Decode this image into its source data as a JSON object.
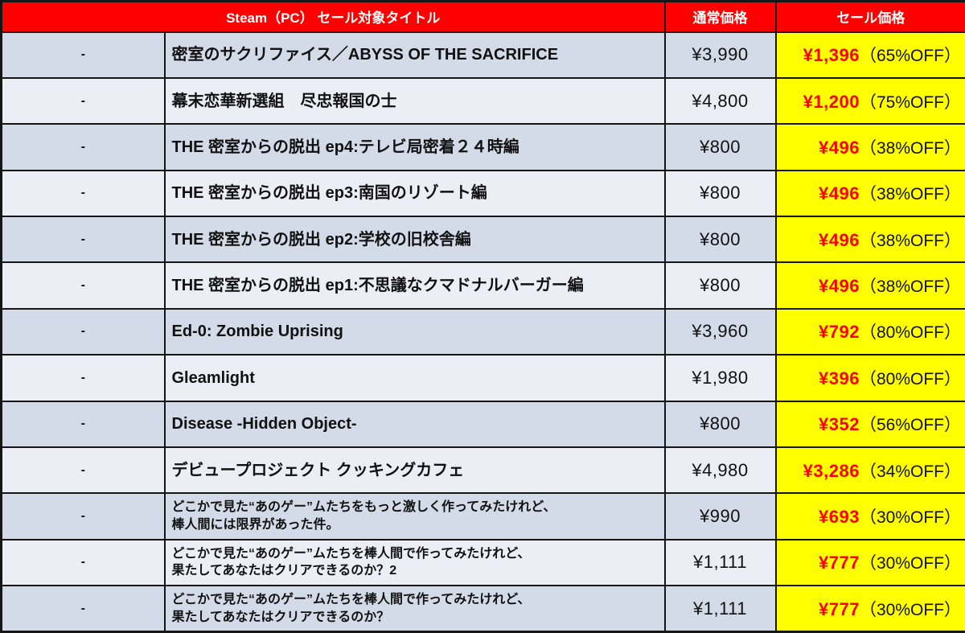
{
  "chart_data": {
    "type": "table",
    "header": {
      "title": "Steam（PC） セール対象タイトル",
      "normal_price": "通常価格",
      "sale_price": "セール価格"
    },
    "rows": [
      {
        "dash": "-",
        "title": "密室のサクリファイス／ABYSS OF THE SACRIFICE",
        "normal_price": "¥3,990",
        "sale_price": "¥1,396",
        "discount": "（65%OFF）"
      },
      {
        "dash": "-",
        "title": "幕末恋華新選組　尽忠報国の士",
        "normal_price": "¥4,800",
        "sale_price": "¥1,200",
        "discount": "（75%OFF）"
      },
      {
        "dash": "-",
        "title": "THE 密室からの脱出 ep4:テレビ局密着２４時編",
        "normal_price": "¥800",
        "sale_price": "¥496",
        "discount": "（38%OFF）"
      },
      {
        "dash": "-",
        "title": "THE 密室からの脱出 ep3:南国のリゾート編",
        "normal_price": "¥800",
        "sale_price": "¥496",
        "discount": "（38%OFF）"
      },
      {
        "dash": "-",
        "title": "THE 密室からの脱出 ep2:学校の旧校舎編",
        "normal_price": "¥800",
        "sale_price": "¥496",
        "discount": "（38%OFF）"
      },
      {
        "dash": "-",
        "title": "THE 密室からの脱出 ep1:不思議なクマドナルバーガー編",
        "normal_price": "¥800",
        "sale_price": "¥496",
        "discount": "（38%OFF）"
      },
      {
        "dash": "-",
        "title": "Ed-0: Zombie Uprising",
        "normal_price": "¥3,960",
        "sale_price": "¥792",
        "discount": "（80%OFF）"
      },
      {
        "dash": "-",
        "title": "Gleamlight",
        "normal_price": "¥1,980",
        "sale_price": "¥396",
        "discount": "（80%OFF）"
      },
      {
        "dash": "-",
        "title": "Disease -Hidden Object-",
        "normal_price": "¥800",
        "sale_price": "¥352",
        "discount": "（56%OFF）"
      },
      {
        "dash": "-",
        "title": "デビュープロジェクト クッキングカフェ",
        "normal_price": "¥4,980",
        "sale_price": "¥3,286",
        "discount": "（34%OFF）"
      },
      {
        "dash": "-",
        "title": "どこかで見た“あのゲー”ムたちをもっと激しく作ってみたけれど、\n棒人間には限界があった件。",
        "normal_price": "¥990",
        "sale_price": "¥693",
        "discount": "（30%OFF）"
      },
      {
        "dash": "-",
        "title": "どこかで見た“あのゲー”ムたちを棒人間で作ってみたけれど、\n果たしてあなたはクリアできるのか？2",
        "normal_price": "¥1,111",
        "sale_price": "¥777",
        "discount": "（30%OFF）"
      },
      {
        "dash": "-",
        "title": "どこかで見た“あのゲー”ムたちを棒人間で作ってみたけれど、\n果たしてあなたはクリアできるのか？",
        "normal_price": "¥1,111",
        "sale_price": "¥777",
        "discount": "（30%OFF）"
      }
    ]
  },
  "colors": {
    "header_bg": "#fe0000",
    "header_text": "#ffffff",
    "row_dark": "#d3dae8",
    "row_light": "#ebeef5",
    "sale_bg": "#ffff00",
    "sale_price_text": "#ff0000",
    "border": "#151515",
    "text": "#111111"
  }
}
